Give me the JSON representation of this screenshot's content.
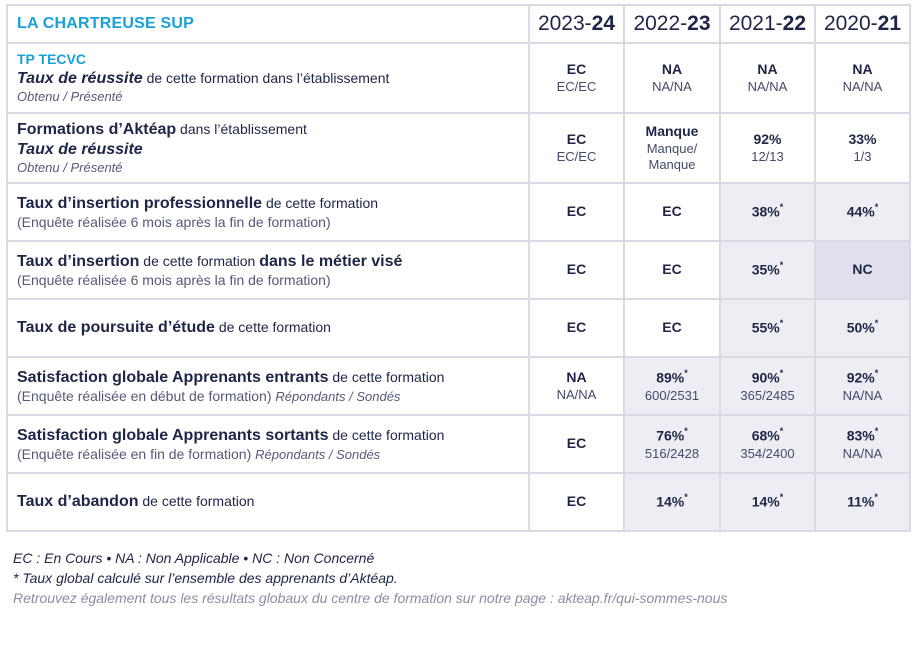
{
  "header": {
    "establishment": "LA CHARTREUSE SUP",
    "years": [
      {
        "prefix": "2023-",
        "bold": "24"
      },
      {
        "prefix": "2022-",
        "bold": "23"
      },
      {
        "prefix": "2021-",
        "bold": "22"
      },
      {
        "prefix": "2020-",
        "bold": "21"
      }
    ]
  },
  "rows": [
    {
      "code": "TP TECVC",
      "title_bold_italic": "Taux de réussite",
      "title_rest": " de cette formation dans l’établissement",
      "note": "Obtenu / Présenté",
      "values": [
        {
          "main": "EC",
          "sub": "EC/EC"
        },
        {
          "main": "NA",
          "sub": "NA/NA"
        },
        {
          "main": "NA",
          "sub": "NA/NA"
        },
        {
          "main": "NA",
          "sub": "NA/NA"
        }
      ]
    },
    {
      "title_bold": "Formations d’Aktéap",
      "title_rest": " dans l’établissement",
      "title2_bold_italic": "Taux de réussite",
      "note": "Obtenu / Présenté",
      "values": [
        {
          "main": "EC",
          "sub": "EC/EC"
        },
        {
          "main": "Manque",
          "sub": "Manque/",
          "sub2": "Manque"
        },
        {
          "main": "92%",
          "sub": "12/13"
        },
        {
          "main": "33%",
          "sub": "1/3"
        }
      ]
    },
    {
      "title_bold": "Taux d’insertion professionnelle",
      "title_rest": " de cette formation",
      "note": "(Enquête réalisée 6 mois après la fin de formation)",
      "values": [
        {
          "main": "EC"
        },
        {
          "main": "EC"
        },
        {
          "main": "38%",
          "star": "*"
        },
        {
          "main": "44%",
          "star": "*"
        }
      ]
    },
    {
      "title_bold": "Taux d’insertion",
      "title_rest": " de cette formation ",
      "title_bold2": "dans le métier visé",
      "note": "(Enquête réalisée 6 mois après la fin de formation)",
      "values": [
        {
          "main": "EC"
        },
        {
          "main": "EC"
        },
        {
          "main": "35%",
          "star": "*"
        },
        {
          "main": "NC"
        }
      ]
    },
    {
      "title_bold": "Taux de poursuite d’étude",
      "title_rest": " de cette formation",
      "values": [
        {
          "main": "EC"
        },
        {
          "main": "EC"
        },
        {
          "main": "55%",
          "star": "*"
        },
        {
          "main": "50%",
          "star": "*"
        }
      ]
    },
    {
      "title_bold": "Satisfaction globale Apprenants entrants",
      "title_rest": " de cette formation",
      "note": "(Enquête réalisée en début de formation) ",
      "note_italic": "Répondants / Sondés",
      "values": [
        {
          "main": "NA",
          "sub": "NA/NA"
        },
        {
          "main": "89%",
          "star": "*",
          "sub": "600/2531"
        },
        {
          "main": "90%",
          "star": "*",
          "sub": "365/2485"
        },
        {
          "main": "92%",
          "star": "*",
          "sub": "NA/NA"
        }
      ]
    },
    {
      "title_bold": "Satisfaction globale Apprenants sortants",
      "title_rest": " de cette formation",
      "note": "(Enquête réalisée en fin de formation) ",
      "note_italic": "Répondants / Sondés",
      "values": [
        {
          "main": "EC"
        },
        {
          "main": "76%",
          "star": "*",
          "sub": "516/2428"
        },
        {
          "main": "68%",
          "star": "*",
          "sub": "354/2400"
        },
        {
          "main": "83%",
          "star": "*",
          "sub": "NA/NA"
        }
      ]
    },
    {
      "title_bold": "Taux d’abandon",
      "title_rest": " de cette formation",
      "values": [
        {
          "main": "EC"
        },
        {
          "main": "14%",
          "star": "*"
        },
        {
          "main": "14%",
          "star": "*"
        },
        {
          "main": "11%",
          "star": "*"
        }
      ]
    }
  ],
  "legend": {
    "line1": "EC : En Cours  •  NA : Non Applicable  •  NC : Non Concerné",
    "line2": "* Taux global calculé sur l’ensemble des apprenants d’Aktéap.",
    "line3": "Retrouvez également tous les résultats globaux du centre de formation sur notre page : akteap.fr/qui-sommes-nous"
  }
}
